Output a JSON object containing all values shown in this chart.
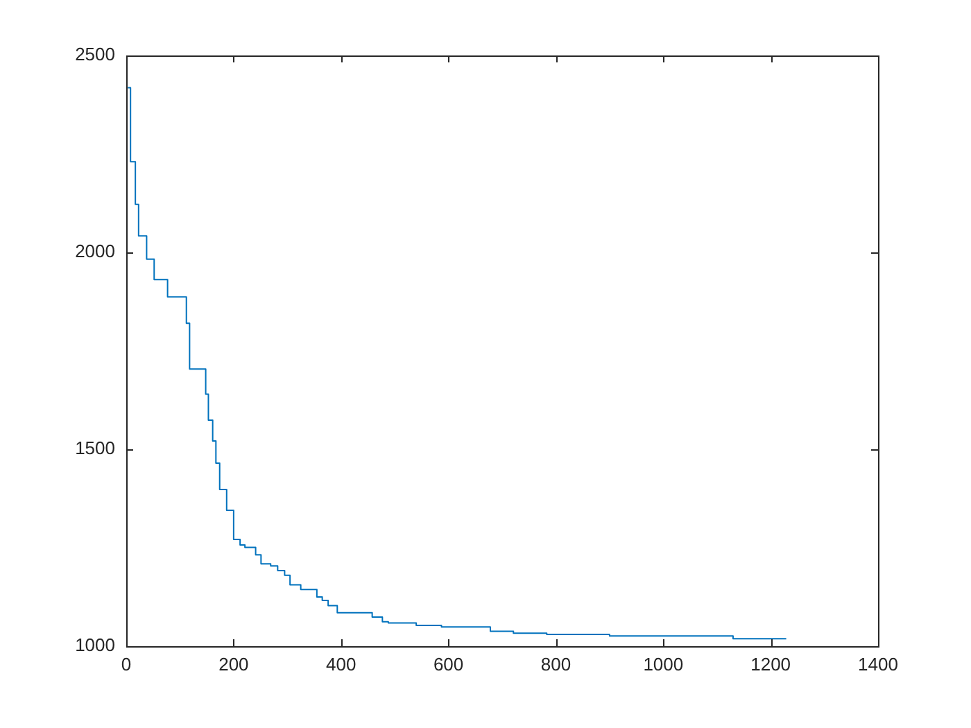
{
  "chart_data": {
    "type": "step",
    "x": [
      3,
      8,
      17,
      23,
      38,
      52,
      77,
      112,
      118,
      148,
      153,
      161,
      167,
      174,
      187,
      200,
      212,
      221,
      241,
      251,
      269,
      282,
      295,
      305,
      325,
      355,
      365,
      376,
      393,
      458,
      477,
      488,
      540,
      587,
      678,
      721,
      783,
      900,
      1130,
      1229
    ],
    "series": [
      {
        "color": "#0072bd",
        "values": [
          2418,
          2230,
          2122,
          2042,
          1983,
          1931,
          1887,
          1820,
          1704,
          1640,
          1574,
          1521,
          1465,
          1398,
          1345,
          1271,
          1257,
          1251,
          1232,
          1209,
          1204,
          1192,
          1180,
          1156,
          1144,
          1125,
          1116,
          1103,
          1085,
          1074,
          1062,
          1059,
          1053,
          1049,
          1038,
          1033,
          1030,
          1026,
          1019,
          1019
        ]
      }
    ],
    "xlim": [
      0,
      1400
    ],
    "xticks": [
      0,
      200,
      400,
      600,
      800,
      1000,
      1200,
      1400
    ],
    "ylim": [
      1000,
      2500
    ],
    "yticks": [
      1000,
      1500,
      2000,
      2500
    ],
    "grid": false,
    "legend": false,
    "line_style": "solid",
    "marker": "none"
  }
}
